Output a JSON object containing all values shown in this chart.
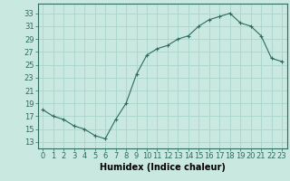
{
  "x": [
    0,
    1,
    2,
    3,
    4,
    5,
    6,
    7,
    8,
    9,
    10,
    11,
    12,
    13,
    14,
    15,
    16,
    17,
    18,
    19,
    20,
    21,
    22,
    23
  ],
  "y": [
    18,
    17,
    16.5,
    15.5,
    15,
    14,
    13.5,
    16.5,
    19,
    23.5,
    26.5,
    27.5,
    28,
    29,
    29.5,
    31,
    32,
    32.5,
    33,
    31.5,
    31,
    29.5,
    26,
    25.5
  ],
  "line_color": "#2e6b5e",
  "marker": "+",
  "marker_color": "#2e6b5e",
  "bg_color": "#c8e8e0",
  "grid_color": "#aad4cc",
  "xlabel": "Humidex (Indice chaleur)",
  "yticks": [
    13,
    15,
    17,
    19,
    21,
    23,
    25,
    27,
    29,
    31,
    33
  ],
  "xticks": [
    0,
    1,
    2,
    3,
    4,
    5,
    6,
    7,
    8,
    9,
    10,
    11,
    12,
    13,
    14,
    15,
    16,
    17,
    18,
    19,
    20,
    21,
    22,
    23
  ],
  "xlim": [
    -0.5,
    23.5
  ],
  "ylim": [
    12.0,
    34.5
  ],
  "xlabel_fontsize": 7,
  "tick_fontsize": 6
}
